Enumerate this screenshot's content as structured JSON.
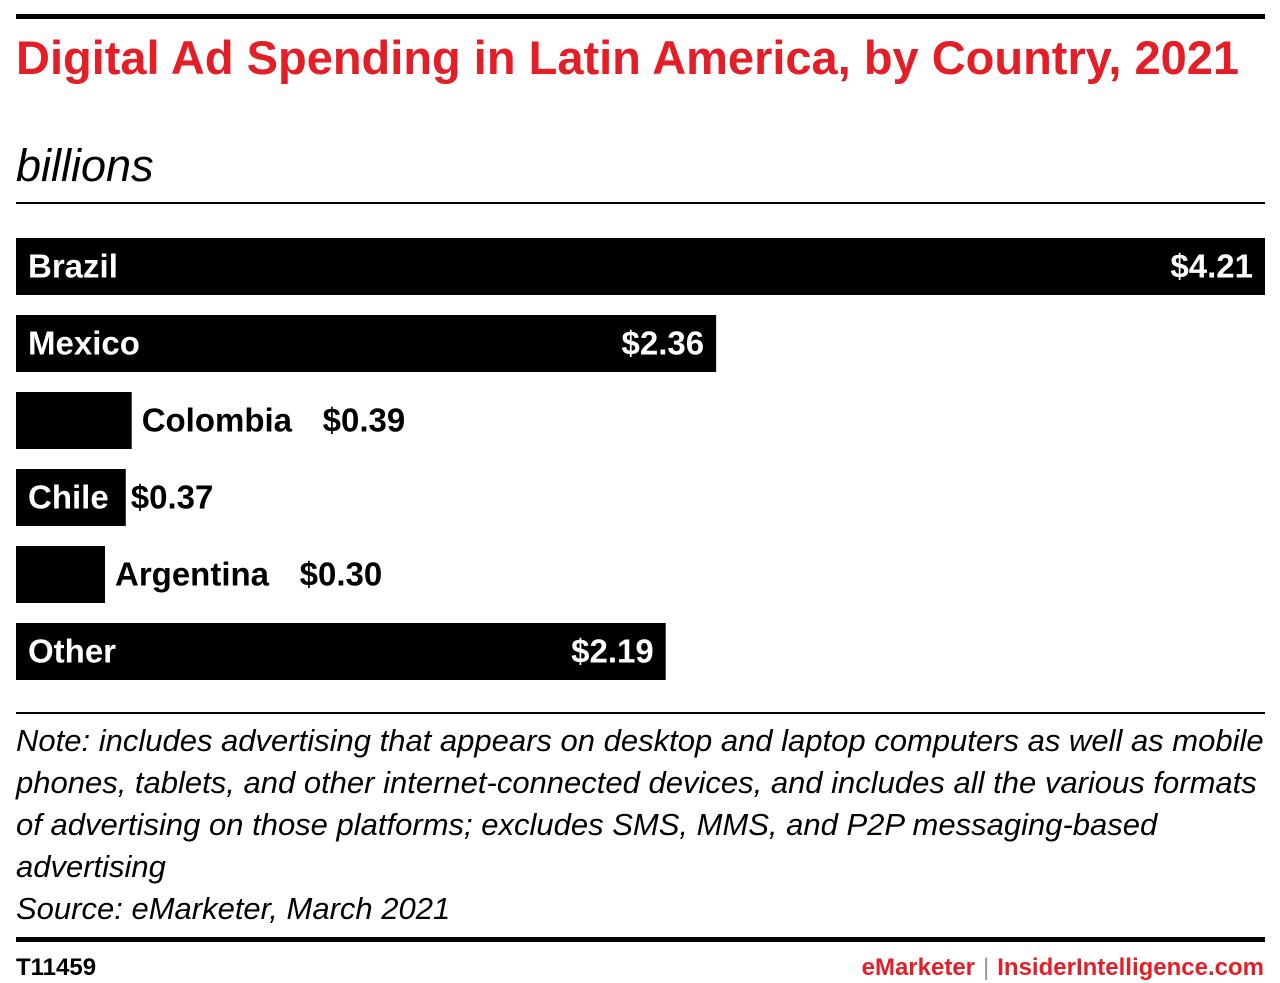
{
  "title": "Digital Ad Spending in Latin America, by Country, 2021",
  "subtitle": "billions",
  "note": "Note: includes advertising that appears on desktop and laptop computers as well as mobile phones, tablets, and other internet-connected devices, and includes all the various formats of advertising on those platforms; excludes SMS, MMS, and P2P messaging-based advertising",
  "source": "Source: eMarketer, March 2021",
  "chart_id": "T11459",
  "footer": {
    "brand1": "eMarketer",
    "separator": "|",
    "brand2": "InsiderIntelligence.com"
  },
  "colors": {
    "title": "#e41e26",
    "bar": "#000000",
    "label_inside": "#ffffff",
    "label_outside": "#000000",
    "brand": "#e41e26"
  },
  "chart_data": {
    "type": "bar",
    "orientation": "horizontal",
    "categories": [
      "Brazil",
      "Mexico",
      "Colombia",
      "Chile",
      "Argentina",
      "Other"
    ],
    "values": [
      4.21,
      2.36,
      0.39,
      0.37,
      0.3,
      2.19
    ],
    "value_labels": [
      "$4.21",
      "$2.36",
      "$0.39",
      "$0.37",
      "$0.30",
      "$2.19"
    ],
    "xlim": [
      0,
      4.21
    ],
    "grid": false,
    "legend": "none"
  }
}
